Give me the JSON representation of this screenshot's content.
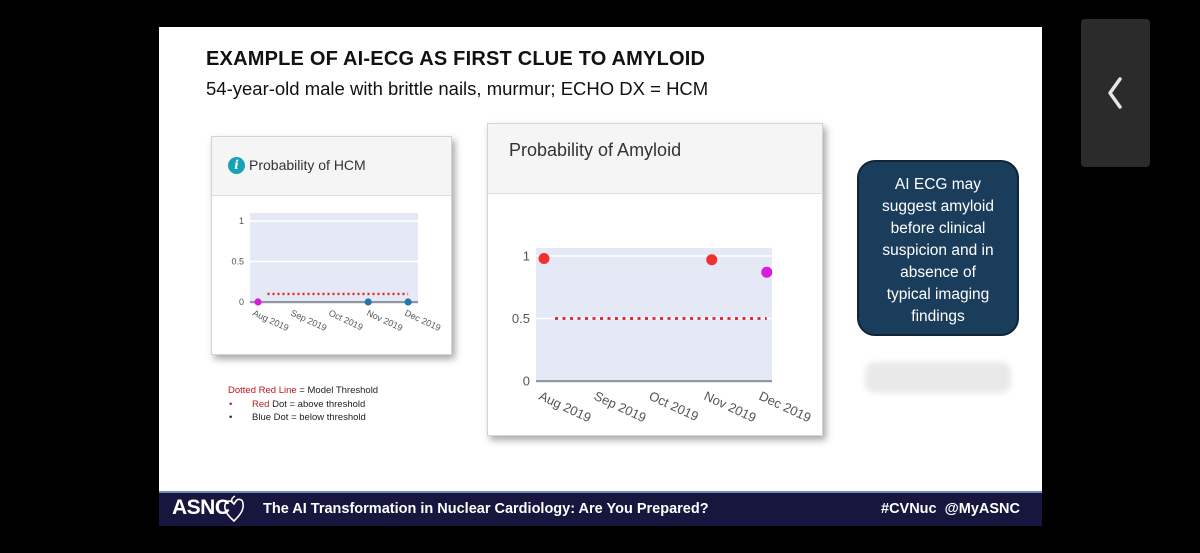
{
  "slide": {
    "title": "EXAMPLE OF AI-ECG AS FIRST CLUE TO AMYLOID",
    "subtitle": "54-year-old male with brittle nails, murmur; ECHO DX = HCM"
  },
  "hcm_panel": {
    "title": "Probability of HCM",
    "icon": "info-icon"
  },
  "amyloid_panel": {
    "title": "Probability of Amyloid"
  },
  "legend": {
    "line1_colored": "Dotted Red Line",
    "line1_rest": " = Model Threshold",
    "bullet": "•",
    "line2_colored": "Red",
    "line2_rest": " Dot = above threshold",
    "line3": "Blue Dot = below threshold"
  },
  "callout": [
    "AI ECG may",
    "suggest amyloid",
    "before clinical",
    "suspicion and in",
    "absence of",
    "typical imaging",
    "findings"
  ],
  "footer": {
    "logo": "ASNC",
    "title": "The AI Transformation in Nuclear Cardiology: Are You Prepared?",
    "tags": "#CVNuc  @MyASNC"
  },
  "colors": {
    "threshold": "#e0232b",
    "above": "#f0312e",
    "below": "#2774ae",
    "latest": "#d81bdc",
    "callout": "#1b3d5c",
    "footer": "#17163e"
  },
  "chart_data": [
    {
      "type": "scatter",
      "title": "Probability of HCM",
      "categories": [
        "Aug 2019",
        "Sep 2019",
        "Oct 2019",
        "Nov 2019",
        "Dec 2019"
      ],
      "ylim": [
        0,
        1
      ],
      "yticks": [
        0,
        0.5,
        1
      ],
      "ytick_labels": [
        "0",
        "0.5",
        "1"
      ],
      "threshold": {
        "value": 0.1,
        "x_from": 0.25,
        "x_to": 3.95
      },
      "points": [
        {
          "x": 0,
          "y": 0,
          "color": "#d81bdc"
        },
        {
          "x": 2.9,
          "y": 0,
          "color": "#2774ae"
        },
        {
          "x": 3.95,
          "y": 0,
          "color": "#2774ae"
        }
      ],
      "grid": true
    },
    {
      "type": "scatter",
      "title": "Probability of Amyloid",
      "categories": [
        "Aug 2019",
        "Sep 2019",
        "Oct 2019",
        "Nov 2019",
        "Dec 2019"
      ],
      "ylim": [
        0,
        1
      ],
      "yticks": [
        0,
        0.5,
        1
      ],
      "ytick_labels": [
        "0",
        "0.5",
        "1"
      ],
      "threshold": {
        "value": 0.5,
        "x_from": 0.2,
        "x_to": 4.05
      },
      "points": [
        {
          "x": 0,
          "y": 0.98,
          "color": "#f0312e"
        },
        {
          "x": 3.05,
          "y": 0.97,
          "color": "#f0312e"
        },
        {
          "x": 4.05,
          "y": 0.87,
          "color": "#d81bdc"
        }
      ],
      "grid": true
    }
  ]
}
